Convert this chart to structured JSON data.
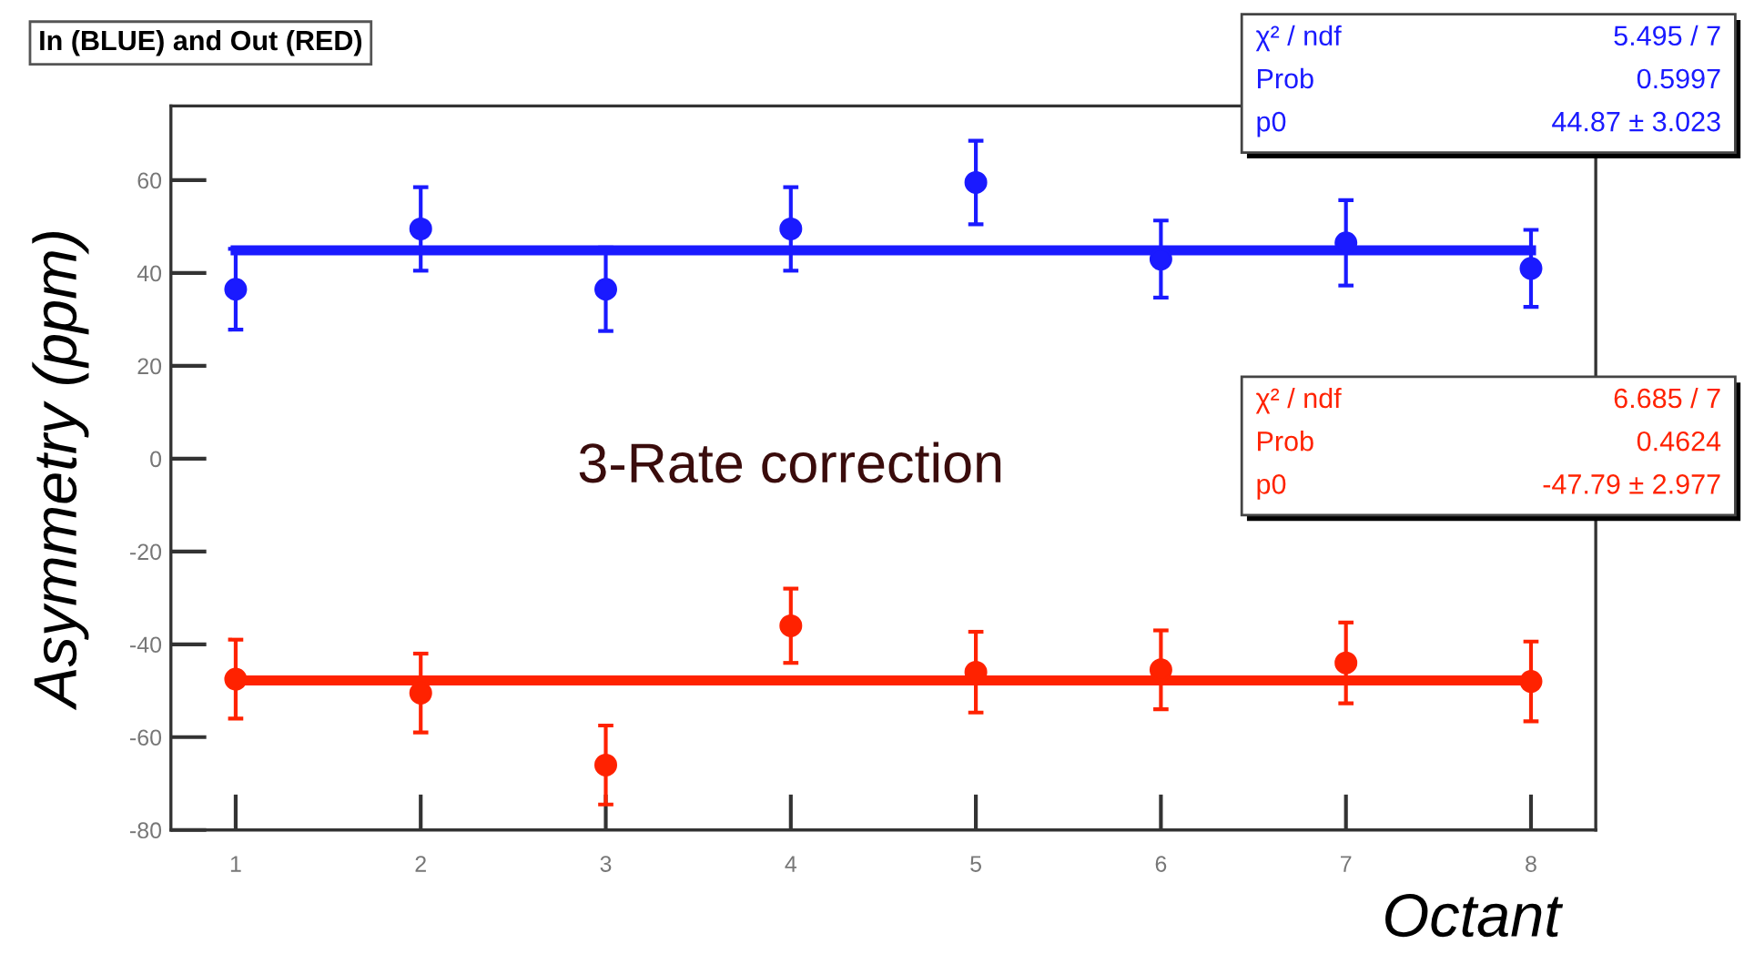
{
  "chart_data": {
    "type": "scatter",
    "title": "In (BLUE) and Out (RED)",
    "xlabel": "Octant",
    "ylabel": "Asymmetry (ppm)",
    "x": [
      1,
      2,
      3,
      4,
      5,
      6,
      7,
      8
    ],
    "series": [
      {
        "type": "scatter",
        "marker": "circle",
        "color": "#1a1aff",
        "values": [
          36.5,
          49.5,
          36.5,
          49.5,
          59.5,
          43,
          46.5,
          41
        ],
        "errors": [
          8.7,
          9,
          9,
          9,
          9,
          8.3,
          9.2,
          8.3
        ]
      },
      {
        "type": "scatter",
        "marker": "circle",
        "color": "#ff2200",
        "values": [
          -47.5,
          -50.5,
          -66,
          -36,
          -46,
          -45.5,
          -44,
          -48
        ],
        "errors": [
          8.5,
          8.5,
          8.5,
          8,
          8.7,
          8.5,
          8.7,
          8.6
        ]
      },
      {
        "type": "line",
        "color": "#1a1aff",
        "values": [
          44.87,
          44.87,
          44.87,
          44.87,
          44.87,
          44.87,
          44.87,
          44.87
        ]
      },
      {
        "type": "line",
        "color": "#ff2200",
        "values": [
          -47.79,
          -47.79,
          -47.79,
          -47.79,
          -47.79,
          -47.79,
          -47.79,
          -47.79
        ]
      }
    ],
    "xlim": [
      0.65,
      8.35
    ],
    "ylim": [
      -80,
      76
    ],
    "xticks": [
      1,
      2,
      3,
      4,
      5,
      6,
      7,
      8
    ],
    "yticks": [
      -80,
      -60,
      -40,
      -20,
      0,
      20,
      40,
      60
    ],
    "grid": false,
    "legend": false,
    "annotations": [
      "3-Rate correction",
      "χ² / ndf",
      "5.495 / 7",
      "Prob",
      "0.5997",
      "p0",
      "44.87 ± 3.023",
      "χ² / ndf",
      "6.685 / 7",
      "Prob",
      "0.4624",
      "p0",
      "-47.79 ± 2.977"
    ]
  }
}
